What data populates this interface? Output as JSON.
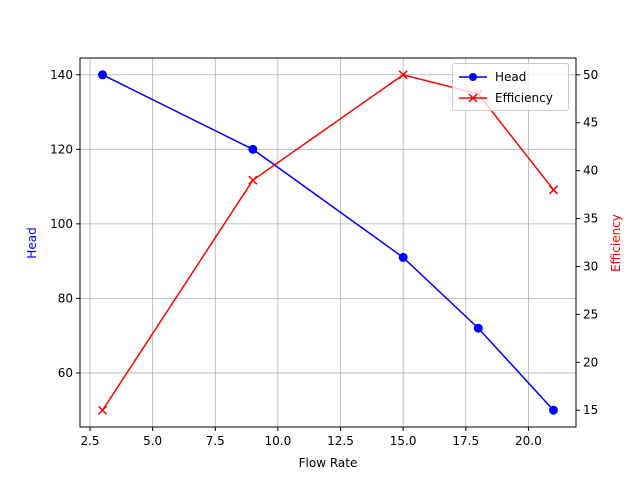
{
  "chart_data": {
    "type": "line",
    "title": "",
    "xlabel": "Flow Rate",
    "ylabel": "Head",
    "ylabel_right": "Efficiency",
    "x": [
      3,
      9,
      15,
      18,
      21
    ],
    "series": [
      {
        "name": "Head",
        "axis": "left",
        "color": "#0000ff",
        "marker": "circle",
        "values": [
          140,
          120,
          91,
          72,
          50
        ]
      },
      {
        "name": "Efficiency",
        "axis": "right",
        "color": "#ff0000",
        "marker": "x",
        "values": [
          15,
          39,
          50,
          48,
          38
        ]
      }
    ],
    "xlim": [
      2.1,
      21.9
    ],
    "ylim": [
      45.5,
      144.5
    ],
    "ylim_right": [
      13.25,
      51.75
    ],
    "xticks": [
      "2.5",
      "5.0",
      "7.5",
      "10.0",
      "12.5",
      "15.0",
      "17.5",
      "20.0"
    ],
    "yticks": [
      "60",
      "80",
      "100",
      "120",
      "140"
    ],
    "yticks_right": [
      "15",
      "20",
      "25",
      "30",
      "35",
      "40",
      "45",
      "50"
    ],
    "grid": true,
    "legend_position": "upper right"
  },
  "legend": {
    "items": [
      {
        "label": "Head"
      },
      {
        "label": "Efficiency"
      }
    ]
  }
}
